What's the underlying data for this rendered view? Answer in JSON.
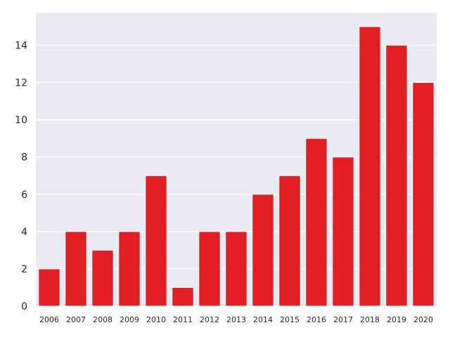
{
  "chart_data": {
    "type": "bar",
    "title": "",
    "xlabel": "",
    "ylabel": "",
    "categories": [
      "2006",
      "2007",
      "2008",
      "2009",
      "2010",
      "2011",
      "2012",
      "2013",
      "2014",
      "2015",
      "2016",
      "2017",
      "2018",
      "2019",
      "2020"
    ],
    "values": [
      2,
      4,
      3,
      4,
      7,
      1,
      4,
      4,
      6,
      7,
      9,
      8,
      15,
      14,
      12
    ],
    "ylim": [
      0,
      15.75
    ],
    "yticks": [
      0,
      2,
      4,
      6,
      8,
      10,
      12,
      14
    ],
    "grid": true,
    "legend": "none",
    "colors": {
      "bar": "#e31e22",
      "plot_background": "#eaeaf2",
      "grid": "#ffffff",
      "text": "#262626"
    }
  }
}
